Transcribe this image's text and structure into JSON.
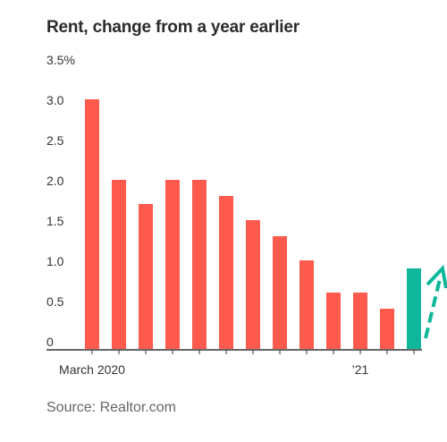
{
  "title": "Rent, change from a year earlier",
  "source": "Source: Realtor.com",
  "colors": {
    "bar": "#ff5a4e",
    "highlight_bar": "#0fb79a",
    "arrow": "#0fb79a",
    "axis": "#333333"
  },
  "chart_data": {
    "type": "bar",
    "title": "Rent, change from a year earlier",
    "xlabel": "",
    "ylabel": "",
    "ylim": [
      0,
      3.5
    ],
    "y_ticks": [
      0,
      0.5,
      1.0,
      1.5,
      2.0,
      2.5,
      3.0,
      3.5
    ],
    "y_tick_labels": [
      "0",
      "0.5",
      "1.0",
      "1.5",
      "2.0",
      "2.5",
      "3.0",
      "3.5%"
    ],
    "x_tick_labels": [
      "March 2020",
      "’21"
    ],
    "categories": [
      "2020-03",
      "2020-04",
      "2020-05",
      "2020-06",
      "2020-07",
      "2020-08",
      "2020-09",
      "2020-10",
      "2020-11",
      "2020-12",
      "2021-01",
      "2021-02",
      "2021-03"
    ],
    "values": [
      3.1,
      2.1,
      1.8,
      2.1,
      2.1,
      1.9,
      1.6,
      1.4,
      1.1,
      0.7,
      0.7,
      0.5,
      1.0
    ],
    "highlight_category": "2021-03",
    "annotation": "upward-trend-arrow",
    "grid": false
  }
}
